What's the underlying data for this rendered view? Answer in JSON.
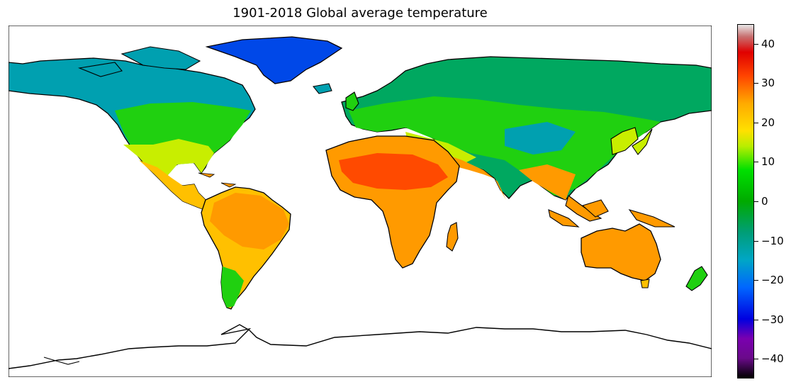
{
  "title": "1901-2018 Global average temperature",
  "colorbar": {
    "min": -45,
    "max": 45,
    "ticks": [
      40,
      30,
      20,
      10,
      0,
      -10,
      -20,
      -30,
      -40
    ],
    "tick_labels": [
      "40",
      "30",
      "20",
      "10",
      "0",
      "−10",
      "−20",
      "−30",
      "−40"
    ],
    "stops": [
      {
        "value": -45,
        "color": "#000000"
      },
      {
        "value": -40,
        "color": "#6a0a8a"
      },
      {
        "value": -35,
        "color": "#7a00b0"
      },
      {
        "value": -30,
        "color": "#0000e0"
      },
      {
        "value": -22,
        "color": "#0066ff"
      },
      {
        "value": -15,
        "color": "#00a6c6"
      },
      {
        "value": -8,
        "color": "#009e78"
      },
      {
        "value": 0,
        "color": "#00aa00"
      },
      {
        "value": 8,
        "color": "#00e000"
      },
      {
        "value": 14,
        "color": "#b8ee00"
      },
      {
        "value": 18,
        "color": "#ffe000"
      },
      {
        "value": 25,
        "color": "#ffaa00"
      },
      {
        "value": 32,
        "color": "#ff4400"
      },
      {
        "value": 38,
        "color": "#e00000"
      },
      {
        "value": 42,
        "color": "#c87070"
      },
      {
        "value": 45,
        "color": "#e8e8e8"
      }
    ]
  },
  "colors": {
    "arctic": "#0048e8",
    "polar": "#00a0b0",
    "boreal": "#00a860",
    "temperate": "#20d010",
    "warm": "#c8ee00",
    "subtropical": "#ffc000",
    "tropical": "#ff9a00",
    "hot": "#ff4a00",
    "land_outline": "#000000"
  }
}
